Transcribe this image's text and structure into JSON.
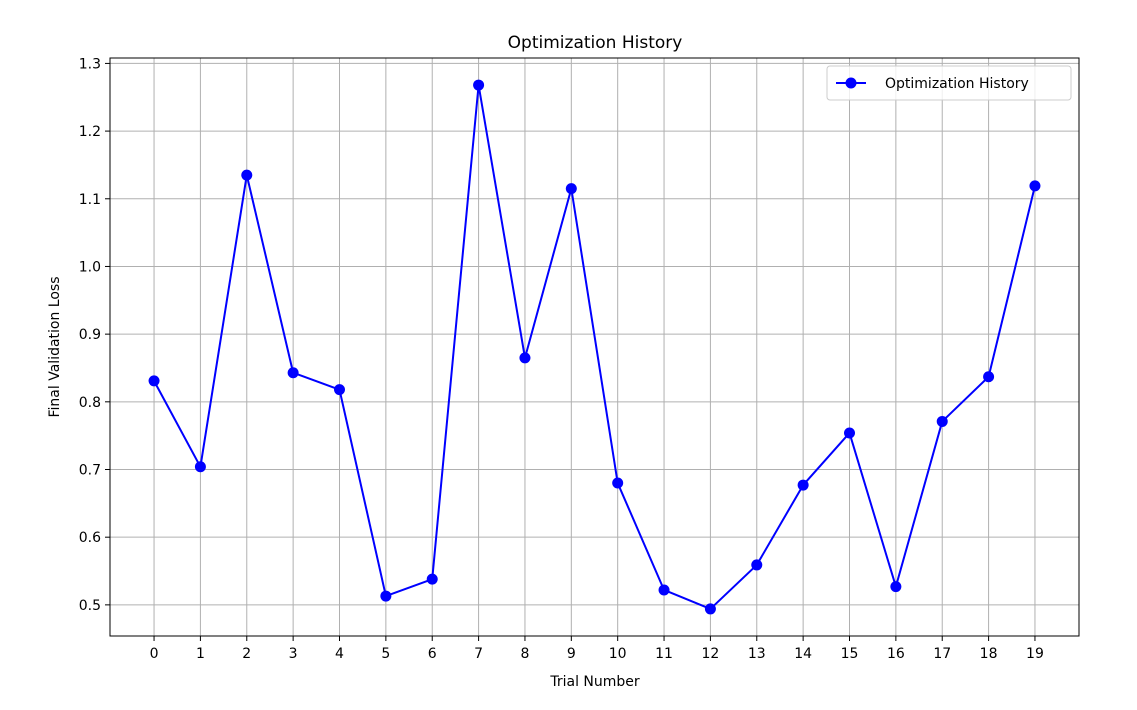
{
  "chart_data": {
    "type": "line",
    "title": "Optimization History",
    "xlabel": "Trial Number",
    "ylabel": "Final Validation Loss",
    "x": [
      0,
      1,
      2,
      3,
      4,
      5,
      6,
      7,
      8,
      9,
      10,
      11,
      12,
      13,
      14,
      15,
      16,
      17,
      18,
      19
    ],
    "xticks": [
      "0",
      "1",
      "2",
      "3",
      "4",
      "5",
      "6",
      "7",
      "8",
      "9",
      "10",
      "11",
      "12",
      "13",
      "14",
      "15",
      "16",
      "17",
      "18",
      "19"
    ],
    "xlim": [
      -0.95,
      19.95
    ],
    "ylim": [
      0.454,
      1.308
    ],
    "yticks": [
      "0.5",
      "0.6",
      "0.7",
      "0.8",
      "0.9",
      "1.0",
      "1.1",
      "1.2",
      "1.3"
    ],
    "ytick_values": [
      0.5,
      0.6,
      0.7,
      0.8,
      0.9,
      1.0,
      1.1,
      1.2,
      1.3
    ],
    "grid": true,
    "legend_position": "top-right",
    "series": [
      {
        "name": "Optimization History",
        "color": "#0000ff",
        "marker": "circle",
        "values": [
          0.831,
          0.704,
          1.135,
          0.843,
          0.818,
          0.513,
          0.538,
          1.268,
          0.865,
          1.115,
          0.68,
          0.522,
          0.494,
          0.559,
          0.677,
          0.754,
          0.527,
          0.771,
          0.837,
          1.119
        ]
      }
    ]
  }
}
